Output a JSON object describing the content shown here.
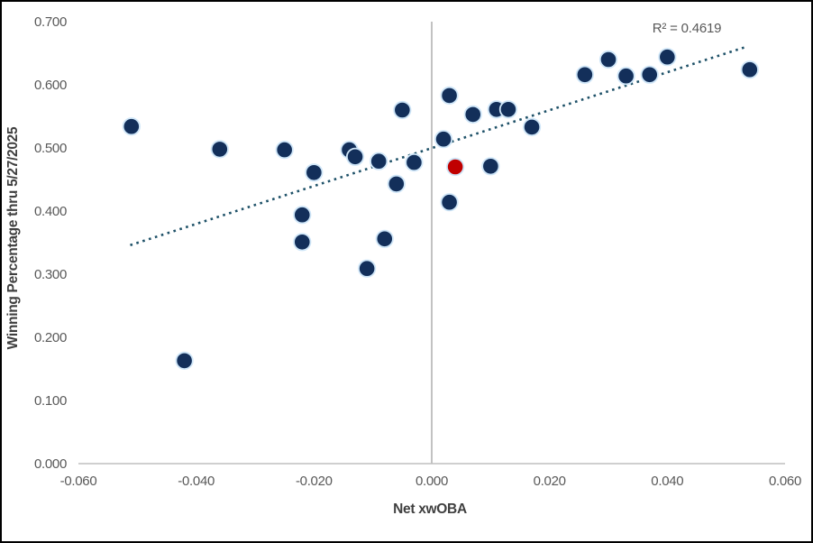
{
  "chart_data": {
    "type": "scatter",
    "title": "",
    "xlabel": "Net xwOBA",
    "ylabel": "Winning Percentage thru 5/27/2025",
    "annotation": "R² = 0.4619",
    "xlim": [
      -0.06,
      0.06
    ],
    "ylim": [
      0.0,
      0.7
    ],
    "x_ticks": [
      "-0.060",
      "-0.040",
      "-0.020",
      "0.000",
      "0.020",
      "0.040",
      "0.060"
    ],
    "y_ticks": [
      "0.000",
      "0.100",
      "0.200",
      "0.300",
      "0.400",
      "0.500",
      "0.600",
      "0.700"
    ],
    "grid": "vertical line at x=0 only",
    "legend_position": "none",
    "series": [
      {
        "name": "teams",
        "marker_color": "#132f5a",
        "marker_outline": "#cfe6f8",
        "points": [
          [
            -0.051,
            0.534
          ],
          [
            -0.042,
            0.163
          ],
          [
            -0.036,
            0.498
          ],
          [
            -0.025,
            0.497
          ],
          [
            -0.022,
            0.394
          ],
          [
            -0.022,
            0.351
          ],
          [
            -0.02,
            0.461
          ],
          [
            -0.014,
            0.497
          ],
          [
            -0.013,
            0.486
          ],
          [
            -0.011,
            0.309
          ],
          [
            -0.009,
            0.479
          ],
          [
            -0.008,
            0.356
          ],
          [
            -0.006,
            0.443
          ],
          [
            -0.005,
            0.56
          ],
          [
            -0.003,
            0.477
          ],
          [
            0.002,
            0.514
          ],
          [
            0.003,
            0.583
          ],
          [
            0.003,
            0.414
          ],
          [
            0.007,
            0.553
          ],
          [
            0.01,
            0.471
          ],
          [
            0.011,
            0.561
          ],
          [
            0.013,
            0.561
          ],
          [
            0.017,
            0.533
          ],
          [
            0.026,
            0.616
          ],
          [
            0.03,
            0.64
          ],
          [
            0.033,
            0.614
          ],
          [
            0.037,
            0.616
          ],
          [
            0.04,
            0.644
          ],
          [
            0.054,
            0.624
          ]
        ]
      },
      {
        "name": "highlighted-team",
        "marker_color": "#c00000",
        "marker_outline": "#cfe6f8",
        "points": [
          [
            0.004,
            0.47
          ]
        ]
      }
    ],
    "trendline": {
      "style": "dotted",
      "color": "#1e5168",
      "x_start": -0.0512,
      "y_start": 0.346,
      "x_end": 0.0537,
      "y_end": 0.661,
      "r_squared": 0.4619
    }
  },
  "colors": {
    "axis_line": "#bfbfbf",
    "zero_gridline": "#a8a8a8",
    "tick_text": "#595959",
    "title_text": "#3f3f3f",
    "background": "#ffffff",
    "border": "#000000"
  }
}
